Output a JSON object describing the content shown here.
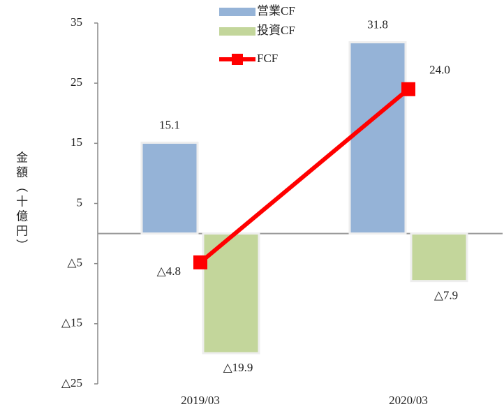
{
  "chart_data": {
    "type": "bar",
    "y_label": "金額（十億円）",
    "categories": [
      "2019/03",
      "2020/03"
    ],
    "series": [
      {
        "name": "営業CF",
        "type": "bar",
        "color": "#95b3d7",
        "values": [
          15.1,
          31.8
        ],
        "value_labels": [
          "15.1",
          "31.8"
        ]
      },
      {
        "name": "投資CF",
        "type": "bar",
        "color": "#c3d69b",
        "values": [
          -19.9,
          -7.9
        ],
        "value_labels": [
          "△19.9",
          "△7.9"
        ]
      },
      {
        "name": "FCF",
        "type": "line",
        "color": "#ff0000",
        "values": [
          -4.8,
          24.0
        ],
        "value_labels": [
          "△4.8",
          "24.0"
        ]
      }
    ],
    "ylim": [
      -25,
      35
    ],
    "yticks": [
      35,
      25,
      15,
      5,
      {
        "value": -5,
        "label": "△5"
      },
      {
        "value": -15,
        "label": "△15"
      },
      {
        "value": -25,
        "label": "△25"
      }
    ],
    "negative_color": "#ff0000"
  }
}
